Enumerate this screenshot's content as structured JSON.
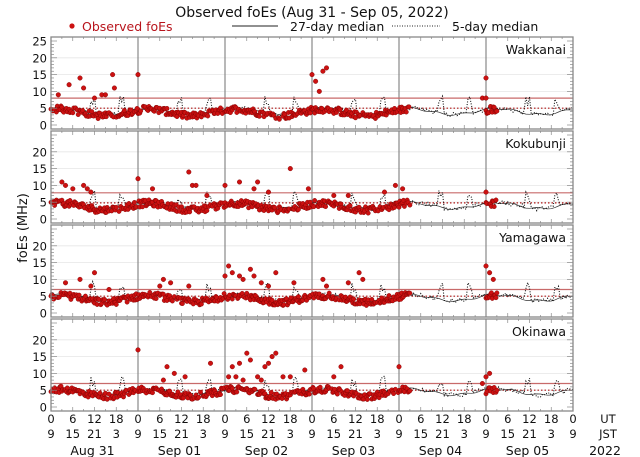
{
  "chart_data": {
    "type": "scatter",
    "title": "Observed foEs (Aug 31 - Sep 05, 2022)",
    "ylabel": "foEs (MHz)",
    "ylim": [
      0,
      25
    ],
    "xlim_hours": [
      0,
      144
    ],
    "legend": {
      "placement": "top",
      "entries": [
        {
          "label": "Observed foEs",
          "style": "red-dot"
        },
        {
          "label": "27-day median",
          "style": "solid-line"
        },
        {
          "label": "5-day median",
          "style": "dotted-line"
        }
      ]
    },
    "y_tick_labels_top": [
      "0",
      "5",
      "10",
      "15",
      "20",
      "25"
    ],
    "y_tick_labels": [
      "0",
      "5",
      "10",
      "15",
      "20"
    ],
    "y_tick_values": [
      0,
      5,
      10,
      15,
      20,
      25
    ],
    "x_tick_labels_ut": [
      "0",
      "6",
      "12",
      "18",
      "0",
      "6",
      "12",
      "18",
      "0",
      "6",
      "12",
      "18",
      "0",
      "6",
      "12",
      "18",
      "0",
      "6",
      "12",
      "18",
      "0",
      "6",
      "12",
      "18",
      "0"
    ],
    "x_tick_labels_jst": [
      "9",
      "15",
      "21",
      "3",
      "9",
      "15",
      "21",
      "3",
      "9",
      "15",
      "21",
      "3",
      "9",
      "15",
      "21",
      "3",
      "9",
      "15",
      "21",
      "3",
      "9",
      "15",
      "21",
      "3",
      "9"
    ],
    "x_row_labels": {
      "ut": "UT",
      "jst": "JST"
    },
    "days": [
      "Aug 31",
      "Sep 01",
      "Sep 02",
      "Sep 03",
      "Sep 04",
      "Sep 05"
    ],
    "year": "2022",
    "observed_end_hour": 99,
    "colors": {
      "observed": "#cc1111",
      "observed_edge": "#7a0000",
      "legend_text": "#b8141c",
      "threshold_line": "#c86a6a",
      "median": "#222222",
      "frame": "#888888",
      "grid": "#e6e6e6"
    },
    "panels": [
      {
        "station": "Wakkanai",
        "threshold_solid": 8,
        "threshold_dotted": 5,
        "baseline_median": 4,
        "outliers": [
          [
            2,
            9
          ],
          [
            5,
            12
          ],
          [
            8,
            14
          ],
          [
            9,
            11
          ],
          [
            12,
            8
          ],
          [
            14,
            9
          ],
          [
            15,
            9
          ],
          [
            17,
            15
          ],
          [
            17.5,
            11
          ],
          [
            24,
            15
          ],
          [
            72,
            15
          ],
          [
            73,
            13
          ],
          [
            74,
            10
          ],
          [
            75,
            16
          ],
          [
            76,
            17
          ],
          [
            120,
            14
          ],
          [
            119,
            8
          ],
          [
            120,
            8
          ]
        ]
      },
      {
        "station": "Kokubunji",
        "threshold_solid": 7.8,
        "threshold_dotted": 4.8,
        "baseline_median": 4,
        "outliers": [
          [
            3,
            11
          ],
          [
            4,
            10
          ],
          [
            6,
            9
          ],
          [
            9,
            10
          ],
          [
            10,
            9
          ],
          [
            11,
            8
          ],
          [
            24,
            12
          ],
          [
            28,
            9
          ],
          [
            38,
            14
          ],
          [
            39,
            10
          ],
          [
            40,
            10
          ],
          [
            43,
            7
          ],
          [
            48,
            10
          ],
          [
            52,
            11
          ],
          [
            56,
            9
          ],
          [
            57,
            11
          ],
          [
            60,
            8
          ],
          [
            66,
            15
          ],
          [
            71,
            9
          ],
          [
            78,
            7
          ],
          [
            82,
            7
          ],
          [
            92,
            8
          ],
          [
            95,
            10
          ],
          [
            97,
            9
          ],
          [
            120,
            8
          ]
        ]
      },
      {
        "station": "Yamagawa",
        "threshold_solid": 7,
        "threshold_dotted": 5,
        "baseline_median": 4.5,
        "outliers": [
          [
            4,
            9
          ],
          [
            8,
            10
          ],
          [
            11,
            8
          ],
          [
            12,
            12
          ],
          [
            16,
            7
          ],
          [
            30,
            8
          ],
          [
            31,
            10
          ],
          [
            33,
            9
          ],
          [
            38,
            8
          ],
          [
            48,
            11
          ],
          [
            49,
            14
          ],
          [
            50,
            12
          ],
          [
            52,
            11
          ],
          [
            53,
            10
          ],
          [
            55,
            13
          ],
          [
            56,
            11
          ],
          [
            58,
            9
          ],
          [
            60,
            8
          ],
          [
            62,
            12
          ],
          [
            67,
            9
          ],
          [
            75,
            10
          ],
          [
            76,
            8
          ],
          [
            82,
            9
          ],
          [
            85,
            12
          ],
          [
            86,
            10
          ],
          [
            120,
            14
          ],
          [
            121,
            12
          ],
          [
            122,
            10
          ]
        ]
      },
      {
        "station": "Okinawa",
        "threshold_solid": 7,
        "threshold_dotted": 5,
        "baseline_median": 4.5,
        "outliers": [
          [
            24,
            17
          ],
          [
            31,
            8
          ],
          [
            32,
            12
          ],
          [
            34,
            10
          ],
          [
            37,
            9
          ],
          [
            44,
            13
          ],
          [
            49,
            9
          ],
          [
            50,
            12
          ],
          [
            51,
            9
          ],
          [
            52,
            13
          ],
          [
            53,
            8
          ],
          [
            54,
            16
          ],
          [
            55,
            14
          ],
          [
            57,
            9
          ],
          [
            58,
            8
          ],
          [
            59,
            12
          ],
          [
            60,
            13
          ],
          [
            61,
            15
          ],
          [
            62,
            16
          ],
          [
            64,
            9
          ],
          [
            66,
            9
          ],
          [
            70,
            11
          ],
          [
            78,
            9
          ],
          [
            80,
            12
          ],
          [
            96,
            12
          ],
          [
            119,
            7
          ],
          [
            120,
            9
          ],
          [
            121,
            10
          ]
        ]
      }
    ]
  }
}
